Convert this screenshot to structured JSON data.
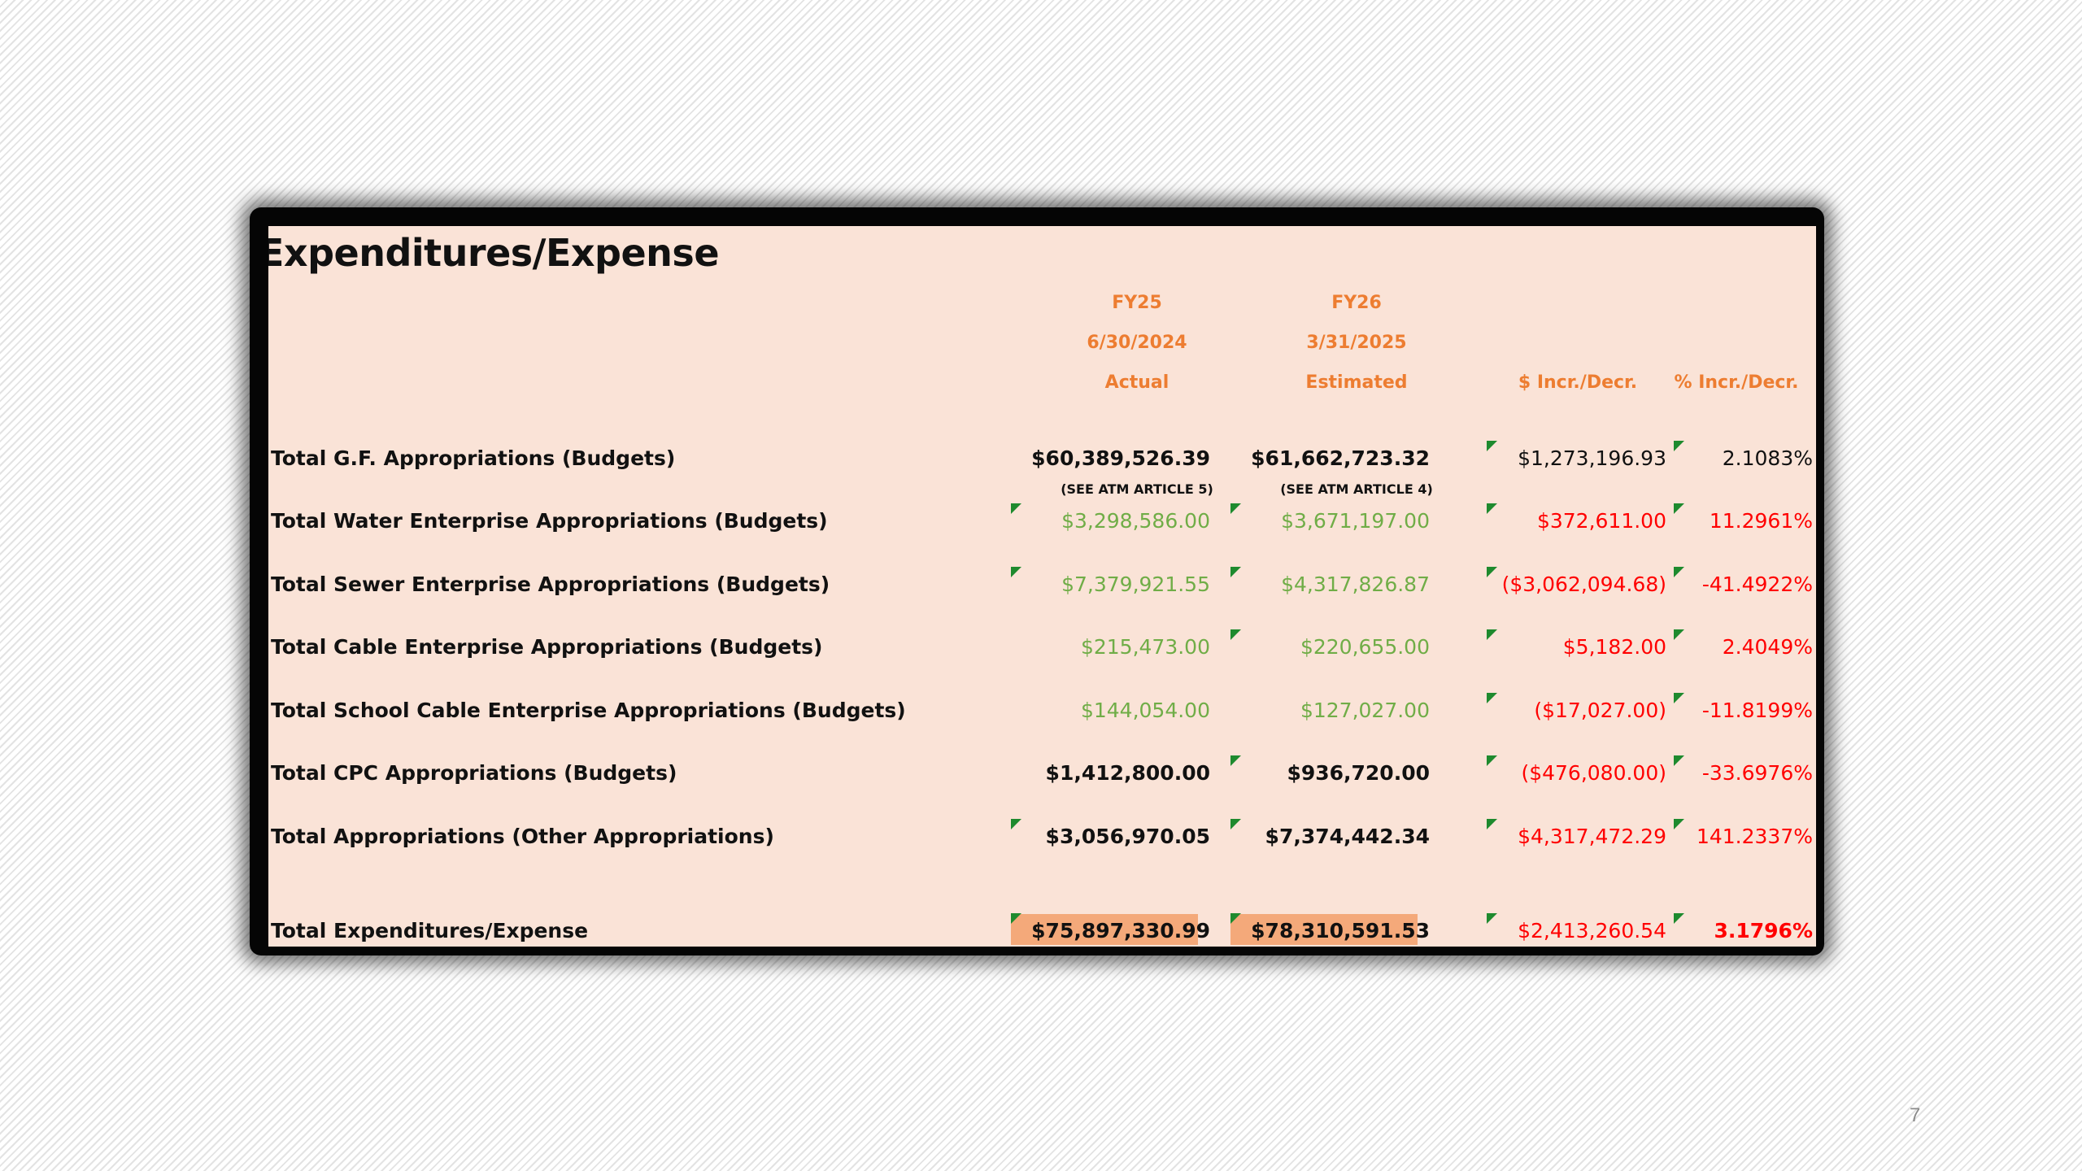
{
  "title": "Expenditures/Expense",
  "headers": {
    "fy25": {
      "year": "FY25",
      "date": "6/30/2024",
      "kind": "Actual"
    },
    "fy26": {
      "year": "FY26",
      "date": "3/31/2025",
      "kind": "Estimated"
    },
    "incr_dollar": "$ Incr./Decr.",
    "incr_pct": "% Incr./Decr."
  },
  "notes": {
    "fy25": "(SEE ATM ARTICLE 5)",
    "fy26": "(SEE ATM ARTICLE 4)"
  },
  "colors": {
    "black": "#111111",
    "green": "#70ad47",
    "red": "#ff0000",
    "header_orange": "#ed7d31",
    "sheet_bg": "#fae3d7",
    "highlight": "#f4a97a"
  },
  "rows": [
    {
      "label": "Total G.F. Appropriations (Budgets)",
      "fy25": "$60,389,526.39",
      "fy26": "$61,662,723.32",
      "diff": "$1,273,196.93",
      "pct": "2.1083%"
    },
    {
      "label": "Total Water Enterprise Appropriations (Budgets)",
      "fy25": "$3,298,586.00",
      "fy26": "$3,671,197.00",
      "diff": "$372,611.00",
      "pct": "11.2961%"
    },
    {
      "label": "Total Sewer Enterprise Appropriations (Budgets)",
      "fy25": "$7,379,921.55",
      "fy26": "$4,317,826.87",
      "diff": "($3,062,094.68)",
      "pct": "-41.4922%"
    },
    {
      "label": "Total Cable Enterprise Appropriations (Budgets)",
      "fy25": "$215,473.00",
      "fy26": "$220,655.00",
      "diff": "$5,182.00",
      "pct": "2.4049%"
    },
    {
      "label": "Total School Cable Enterprise Appropriations (Budgets)",
      "fy25": "$144,054.00",
      "fy26": "$127,027.00",
      "diff": "($17,027.00)",
      "pct": "-11.8199%"
    },
    {
      "label": "Total CPC Appropriations (Budgets)",
      "fy25": "$1,412,800.00",
      "fy26": "$936,720.00",
      "diff": "($476,080.00)",
      "pct": "-33.6976%"
    },
    {
      "label": "Total Appropriations (Other Appropriations)",
      "fy25": "$3,056,970.05",
      "fy26": "$7,374,442.34",
      "diff": "$4,317,472.29",
      "pct": "141.2337%"
    }
  ],
  "total": {
    "label": "Total Expenditures/Expense",
    "fy25": "$75,897,330.99",
    "fy26": "$78,310,591.53",
    "diff": "$2,413,260.54",
    "pct": "3.1796%"
  },
  "page_number": "7"
}
